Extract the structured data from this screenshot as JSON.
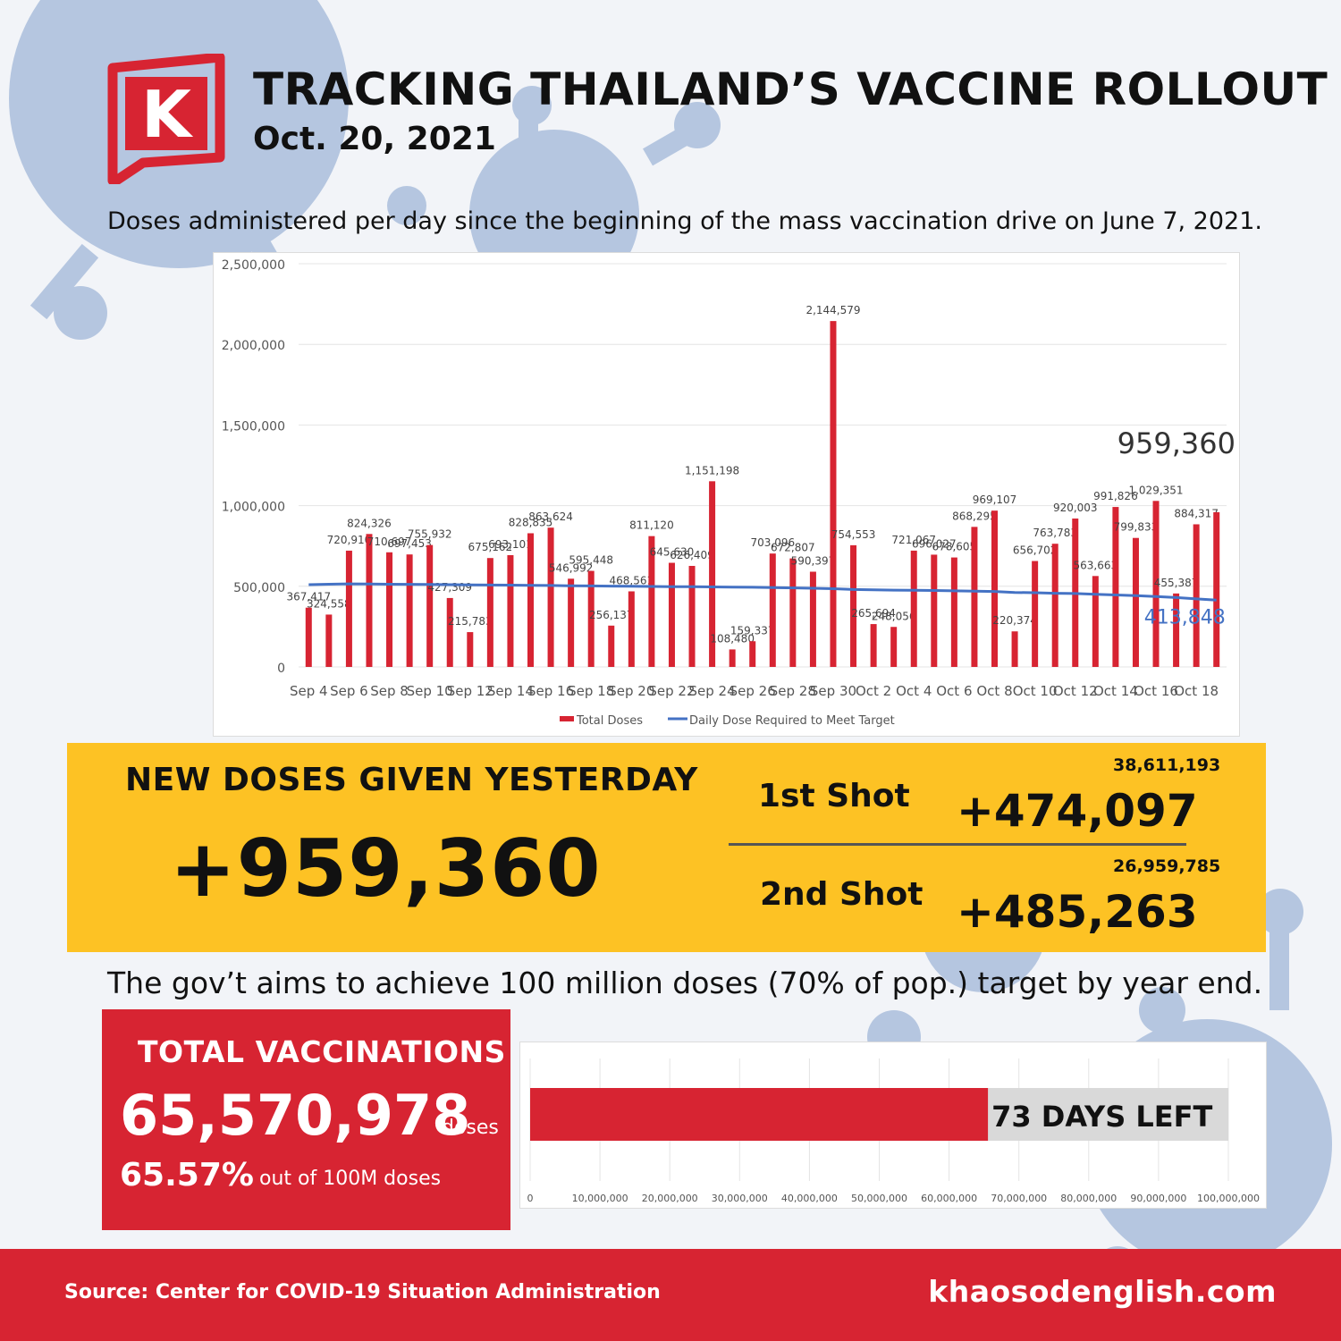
{
  "header": {
    "title": "TRACKING THAILAND’S VACCINE ROLLOUT",
    "date": "Oct. 20, 2021",
    "logo_letter": "K"
  },
  "subtitle": "Doses administered per day since the beginning of the mass vaccination drive on June 7, 2021.",
  "chart_data": {
    "type": "bar",
    "y_ticks": [
      "0",
      "500,000",
      "1,000,000",
      "1,500,000",
      "2,000,000",
      "2,500,000"
    ],
    "ylim": [
      0,
      2500000
    ],
    "x_tick_labels": [
      "Sep 4",
      "Sep 6",
      "Sep 8",
      "Sep 10",
      "Sep 12",
      "Sep 14",
      "Sep 16",
      "Sep 18",
      "Sep 20",
      "Sep 22",
      "Sep 24",
      "Sep 26",
      "Sep 28",
      "Sep 30",
      "Oct 2",
      "Oct 4",
      "Oct 6",
      "Oct 8",
      "Oct 10",
      "Oct 12",
      "Oct 14",
      "Oct 16",
      "Oct 18"
    ],
    "series": [
      {
        "name": "Total Doses",
        "color": "#d72432",
        "values": [
          367417,
          324558,
          720910,
          824326,
          710697,
          697453,
          755932,
          427309,
          215783,
          675162,
          693101,
          828835,
          863624,
          546992,
          595448,
          256137,
          468561,
          811120,
          645630,
          626409,
          1151198,
          108480,
          159337,
          703096,
          672807,
          590397,
          2144579,
          754553,
          265694,
          248056,
          721067,
          696027,
          678605,
          868295,
          969107,
          220374,
          656702,
          763783,
          920003,
          563663,
          991826,
          799833,
          1029351,
          455387,
          884317,
          959360
        ],
        "labels": [
          "367,417",
          "324,558",
          "720,910",
          "824,326",
          "710,697",
          "697,453",
          "755,932",
          "427,309",
          "215,783",
          "675,162",
          "693,101",
          "828,835",
          "863,624",
          "546,992",
          "595,448",
          "256,137",
          "468,561",
          "811,120",
          "645,630",
          "626,409",
          "1,151,198",
          "108,480",
          "159,337",
          "703,096",
          "672,807",
          "590,397",
          "2,144,579",
          "754,553",
          "265,694",
          "248,056",
          "721,067",
          "696,027",
          "678,605",
          "868,295",
          "969,107",
          "220,374",
          "656,702",
          "763,783",
          "920,003",
          "563,663",
          "991,826",
          "799,833",
          "1,029,351",
          "455,387",
          "884,317",
          "959,360"
        ]
      },
      {
        "name": "Daily Dose Required to Meet Target",
        "color": "#4472c4",
        "type": "line",
        "values": [
          510000,
          513000,
          515000,
          514000,
          513000,
          512000,
          511000,
          510000,
          509000,
          508000,
          507000,
          506000,
          505000,
          503000,
          502000,
          501000,
          500000,
          499000,
          498000,
          497000,
          496000,
          495000,
          494000,
          492000,
          490000,
          488000,
          485000,
          480000,
          478000,
          476000,
          475000,
          474000,
          472000,
          470000,
          468000,
          462000,
          460000,
          457000,
          455000,
          450000,
          446000,
          442000,
          436000,
          430000,
          422000,
          413848
        ],
        "last_label": "413,848"
      }
    ],
    "callout": "959,360"
  },
  "yesterday": {
    "label": "NEW DOSES GIVEN YESTERDAY",
    "value": "+959,360",
    "first": {
      "label": "1st Shot",
      "total": "38,611,193",
      "value": "+474,097"
    },
    "second": {
      "label": "2nd Shot",
      "total": "26,959,785",
      "value": "+485,263"
    }
  },
  "goal_text": "The gov’t aims to achieve 100 million doses (70% of pop.) target by year end.",
  "total": {
    "label": "TOTAL VACCINATIONS",
    "value": "65,570,978",
    "unit": "doses",
    "percent": "65.57%",
    "percent_text": "out of 100M doses"
  },
  "progress": {
    "value": 65570978,
    "max": 100000000,
    "days_left": "73 DAYS LEFT",
    "ticks": [
      "0",
      "10,000,000",
      "20,000,000",
      "30,000,000",
      "40,000,000",
      "50,000,000",
      "60,000,000",
      "70,000,000",
      "80,000,000",
      "90,000,000",
      "100,000,000"
    ],
    "bar_color": "#d72432",
    "rest_color": "#d9d9d9"
  },
  "footer": {
    "source": "Source: Center for COVID-19 Situation Administration",
    "site": "khaosodenglish.com"
  }
}
